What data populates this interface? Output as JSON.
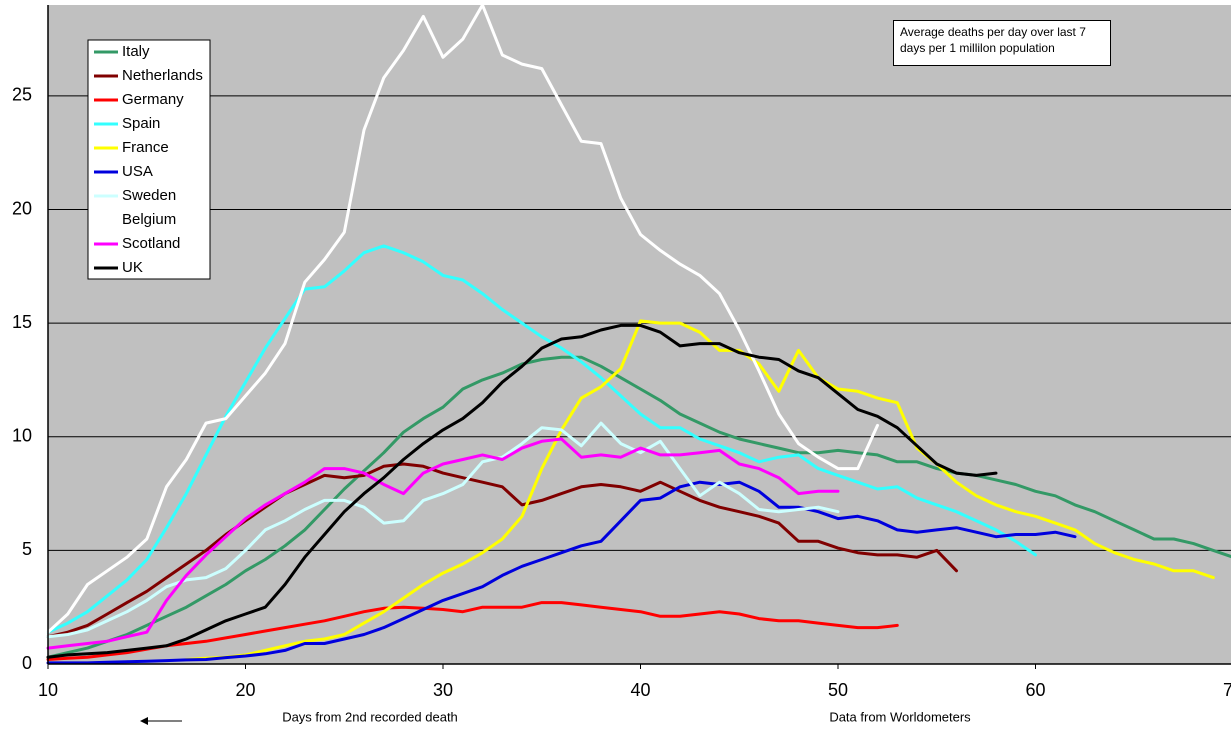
{
  "chart_data": {
    "type": "line",
    "annotation": "Average deaths per day over last 7 days per 1 millilon population",
    "x_label": "Days from 2nd recorded death",
    "source": "Data from Worldometers",
    "xlim": [
      10,
      70
    ],
    "xticks": [
      10,
      20,
      30,
      40,
      50,
      60,
      70
    ],
    "ylim": [
      0,
      29
    ],
    "yticks": [
      0,
      5,
      10,
      15,
      20,
      25
    ],
    "grid": true,
    "legend": "upper left",
    "x": [
      10,
      11,
      12,
      13,
      14,
      15,
      16,
      17,
      18,
      19,
      20,
      21,
      22,
      23,
      24,
      25,
      26,
      27,
      28,
      29,
      30,
      31,
      32,
      33,
      34,
      35,
      36,
      37,
      38,
      39,
      40,
      41,
      42,
      43,
      44,
      45,
      46,
      47,
      48,
      49,
      50,
      51,
      52,
      53,
      54,
      55,
      56,
      57,
      58,
      59,
      60,
      61,
      62,
      63,
      64,
      65,
      66,
      67,
      68,
      69,
      70
    ],
    "series": [
      {
        "name": "Italy",
        "color": "#339966",
        "values": [
          0.3,
          0.5,
          0.7,
          1.0,
          1.3,
          1.7,
          2.1,
          2.5,
          3.0,
          3.5,
          4.1,
          4.6,
          5.2,
          5.9,
          6.8,
          7.7,
          8.5,
          9.3,
          10.2,
          10.8,
          11.3,
          12.1,
          12.5,
          12.8,
          13.2,
          13.4,
          13.5,
          13.5,
          13.1,
          12.6,
          12.1,
          11.6,
          11.0,
          10.6,
          10.2,
          9.9,
          9.7,
          9.5,
          9.3,
          9.3,
          9.4,
          9.3,
          9.2,
          8.9,
          8.9,
          8.6,
          8.4,
          8.3,
          8.1,
          7.9,
          7.6,
          7.4,
          7.0,
          6.7,
          6.3,
          5.9,
          5.5,
          5.5,
          5.3,
          5.0,
          4.7
        ]
      },
      {
        "name": "Netherlands",
        "color": "#800000",
        "values": [
          1.2,
          1.4,
          1.7,
          2.2,
          2.7,
          3.2,
          3.8,
          4.4,
          5.0,
          5.7,
          6.3,
          6.9,
          7.5,
          7.9,
          8.3,
          8.2,
          8.3,
          8.7,
          8.8,
          8.7,
          8.4,
          8.2,
          8.0,
          7.8,
          7.0,
          7.2,
          7.5,
          7.8,
          7.9,
          7.8,
          7.6,
          8.0,
          7.6,
          7.2,
          6.9,
          6.7,
          6.5,
          6.2,
          5.4,
          5.4,
          5.1,
          4.9,
          4.8,
          4.8,
          4.7,
          5.0,
          4.1,
          null,
          null,
          null,
          null,
          null,
          null,
          null,
          null,
          null,
          null,
          null,
          null,
          null,
          null
        ]
      },
      {
        "name": "Germany",
        "color": "#ff0000",
        "values": [
          0.2,
          0.25,
          0.3,
          0.4,
          0.5,
          0.65,
          0.8,
          0.9,
          1.0,
          1.15,
          1.3,
          1.45,
          1.6,
          1.75,
          1.9,
          2.1,
          2.3,
          2.45,
          2.5,
          2.45,
          2.4,
          2.3,
          2.5,
          2.5,
          2.5,
          2.7,
          2.7,
          2.6,
          2.5,
          2.4,
          2.3,
          2.1,
          2.1,
          2.2,
          2.3,
          2.2,
          2.0,
          1.9,
          1.9,
          1.8,
          1.7,
          1.6,
          1.6,
          1.7,
          null,
          null,
          null,
          null,
          null,
          null,
          null,
          null,
          null,
          null,
          null,
          null,
          null,
          null,
          null,
          null,
          null
        ]
      },
      {
        "name": "Spain",
        "color": "#33ffff",
        "values": [
          1.4,
          1.8,
          2.3,
          3.0,
          3.7,
          4.6,
          6.0,
          7.5,
          9.2,
          10.9,
          12.4,
          13.9,
          15.2,
          16.5,
          16.6,
          17.3,
          18.1,
          18.4,
          18.1,
          17.7,
          17.1,
          16.9,
          16.3,
          15.6,
          15.0,
          14.4,
          13.9,
          13.3,
          12.6,
          11.8,
          11.0,
          10.4,
          10.4,
          9.9,
          9.6,
          9.3,
          8.9,
          9.1,
          9.2,
          8.6,
          8.3,
          8.0,
          7.7,
          7.8,
          7.3,
          7.0,
          6.7,
          6.3,
          5.9,
          5.4,
          4.8,
          null,
          null,
          null,
          null,
          null,
          null,
          null,
          null,
          null,
          null
        ]
      },
      {
        "name": "France",
        "color": "#ffff00",
        "values": [
          null,
          null,
          null,
          null,
          null,
          null,
          null,
          0.2,
          0.25,
          0.3,
          0.4,
          0.6,
          0.8,
          1.0,
          1.1,
          1.3,
          1.8,
          2.3,
          2.9,
          3.5,
          4.0,
          4.4,
          4.9,
          5.5,
          6.5,
          8.6,
          10.3,
          11.7,
          12.2,
          13.0,
          15.1,
          15.0,
          15.0,
          14.6,
          13.8,
          13.8,
          13.2,
          12.0,
          13.8,
          12.6,
          12.1,
          12.0,
          11.7,
          11.5,
          9.5,
          8.8,
          8.0,
          7.4,
          7.0,
          6.7,
          6.5,
          6.2,
          5.9,
          5.3,
          4.9,
          4.6,
          4.4,
          4.1,
          4.1,
          3.8,
          null
        ]
      },
      {
        "name": "USA",
        "color": "#0000dd",
        "values": [
          0.05,
          0.05,
          0.05,
          0.08,
          0.1,
          0.12,
          0.15,
          0.18,
          0.2,
          0.28,
          0.35,
          0.45,
          0.6,
          0.9,
          0.9,
          1.1,
          1.3,
          1.6,
          2.0,
          2.4,
          2.8,
          3.1,
          3.4,
          3.9,
          4.3,
          4.6,
          4.9,
          5.2,
          5.4,
          6.3,
          7.2,
          7.3,
          7.8,
          8.0,
          7.9,
          8.0,
          7.6,
          6.9,
          6.9,
          6.7,
          6.4,
          6.5,
          6.3,
          5.9,
          5.8,
          5.9,
          6.0,
          5.8,
          5.6,
          5.7,
          5.7,
          5.8,
          5.6,
          null,
          null,
          null,
          null,
          null,
          null,
          null,
          null
        ]
      },
      {
        "name": "Sweden",
        "color": "#ccffff",
        "values": [
          1.2,
          1.3,
          1.5,
          1.9,
          2.3,
          2.8,
          3.4,
          3.7,
          3.8,
          4.2,
          5.0,
          5.9,
          6.3,
          6.8,
          7.2,
          7.2,
          6.9,
          6.2,
          6.3,
          7.2,
          7.5,
          7.9,
          8.9,
          9.1,
          9.7,
          10.4,
          10.3,
          9.6,
          10.6,
          9.7,
          9.3,
          9.8,
          8.6,
          7.4,
          8.0,
          7.5,
          6.8,
          6.7,
          6.8,
          6.9,
          6.7,
          null,
          null,
          null,
          null,
          null,
          null,
          null,
          null,
          null,
          null,
          null,
          null,
          null,
          null,
          null,
          null,
          null,
          null,
          null,
          null
        ]
      },
      {
        "name": "Belgium",
        "color": "#ffffff",
        "values": [
          1.4,
          2.2,
          3.5,
          4.1,
          4.7,
          5.5,
          7.8,
          9.0,
          10.6,
          10.8,
          11.8,
          12.8,
          14.1,
          16.8,
          17.8,
          19.0,
          23.5,
          25.8,
          27.0,
          28.5,
          26.7,
          27.5,
          29.0,
          26.8,
          26.4,
          26.2,
          24.6,
          23.0,
          22.9,
          20.5,
          18.9,
          18.2,
          17.6,
          17.1,
          16.3,
          14.7,
          12.9,
          11.0,
          9.7,
          9.1,
          8.6,
          8.6,
          10.5,
          null,
          null,
          null,
          null,
          null,
          null,
          null,
          null,
          null,
          null,
          null,
          null,
          null,
          null,
          null,
          null,
          null,
          null
        ]
      },
      {
        "name": "Scotland",
        "color": "#ff00ff",
        "values": [
          0.7,
          0.8,
          0.9,
          1.0,
          1.2,
          1.4,
          2.8,
          3.9,
          4.8,
          5.6,
          6.4,
          7.0,
          7.5,
          8.0,
          8.6,
          8.6,
          8.4,
          7.9,
          7.5,
          8.4,
          8.8,
          9.0,
          9.2,
          9.0,
          9.5,
          9.8,
          9.9,
          9.1,
          9.2,
          9.1,
          9.5,
          9.2,
          9.2,
          9.3,
          9.4,
          8.8,
          8.6,
          8.2,
          7.5,
          7.6,
          7.6,
          null,
          null,
          null,
          null,
          null,
          null,
          null,
          null,
          null,
          null,
          null,
          null,
          null,
          null,
          null,
          null,
          null,
          null,
          null,
          null
        ]
      },
      {
        "name": "UK",
        "color": "#000000",
        "values": [
          0.3,
          0.4,
          0.45,
          0.5,
          0.6,
          0.7,
          0.8,
          1.1,
          1.5,
          1.9,
          2.2,
          2.5,
          3.5,
          4.7,
          5.7,
          6.7,
          7.5,
          8.2,
          9.0,
          9.7,
          10.3,
          10.8,
          11.5,
          12.4,
          13.1,
          13.9,
          14.3,
          14.4,
          14.7,
          14.9,
          14.9,
          14.6,
          14.0,
          14.1,
          14.1,
          13.7,
          13.5,
          13.4,
          12.9,
          12.6,
          11.9,
          11.2,
          10.9,
          10.4,
          9.6,
          8.8,
          8.4,
          8.3,
          8.4,
          null,
          null,
          null,
          null,
          null,
          null,
          null,
          null,
          null,
          null,
          null,
          null
        ]
      }
    ]
  }
}
